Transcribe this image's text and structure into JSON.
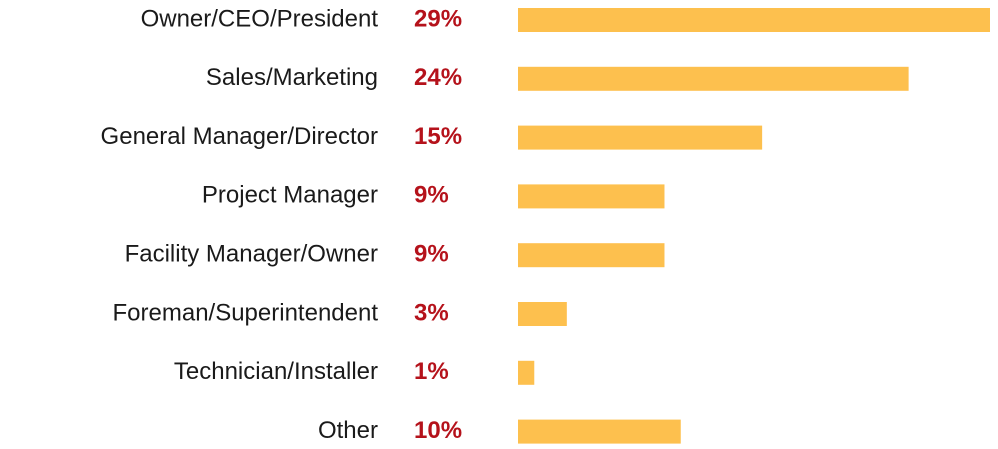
{
  "chart_data": {
    "type": "barh",
    "categories": [
      "Owner/CEO/President",
      "Sales/Marketing",
      "General Manager/Director",
      "Project Manager",
      "Facility Manager/Owner",
      "Foreman/Superintendent",
      "Technician/Installer",
      "Other"
    ],
    "values": [
      29,
      24,
      15,
      9,
      9,
      3,
      1,
      10
    ],
    "value_labels": [
      "29%",
      "24%",
      "15%",
      "9%",
      "9%",
      "3%",
      "1%",
      "10%"
    ],
    "color": "#fdc04e",
    "label_color": "#b5121b"
  }
}
